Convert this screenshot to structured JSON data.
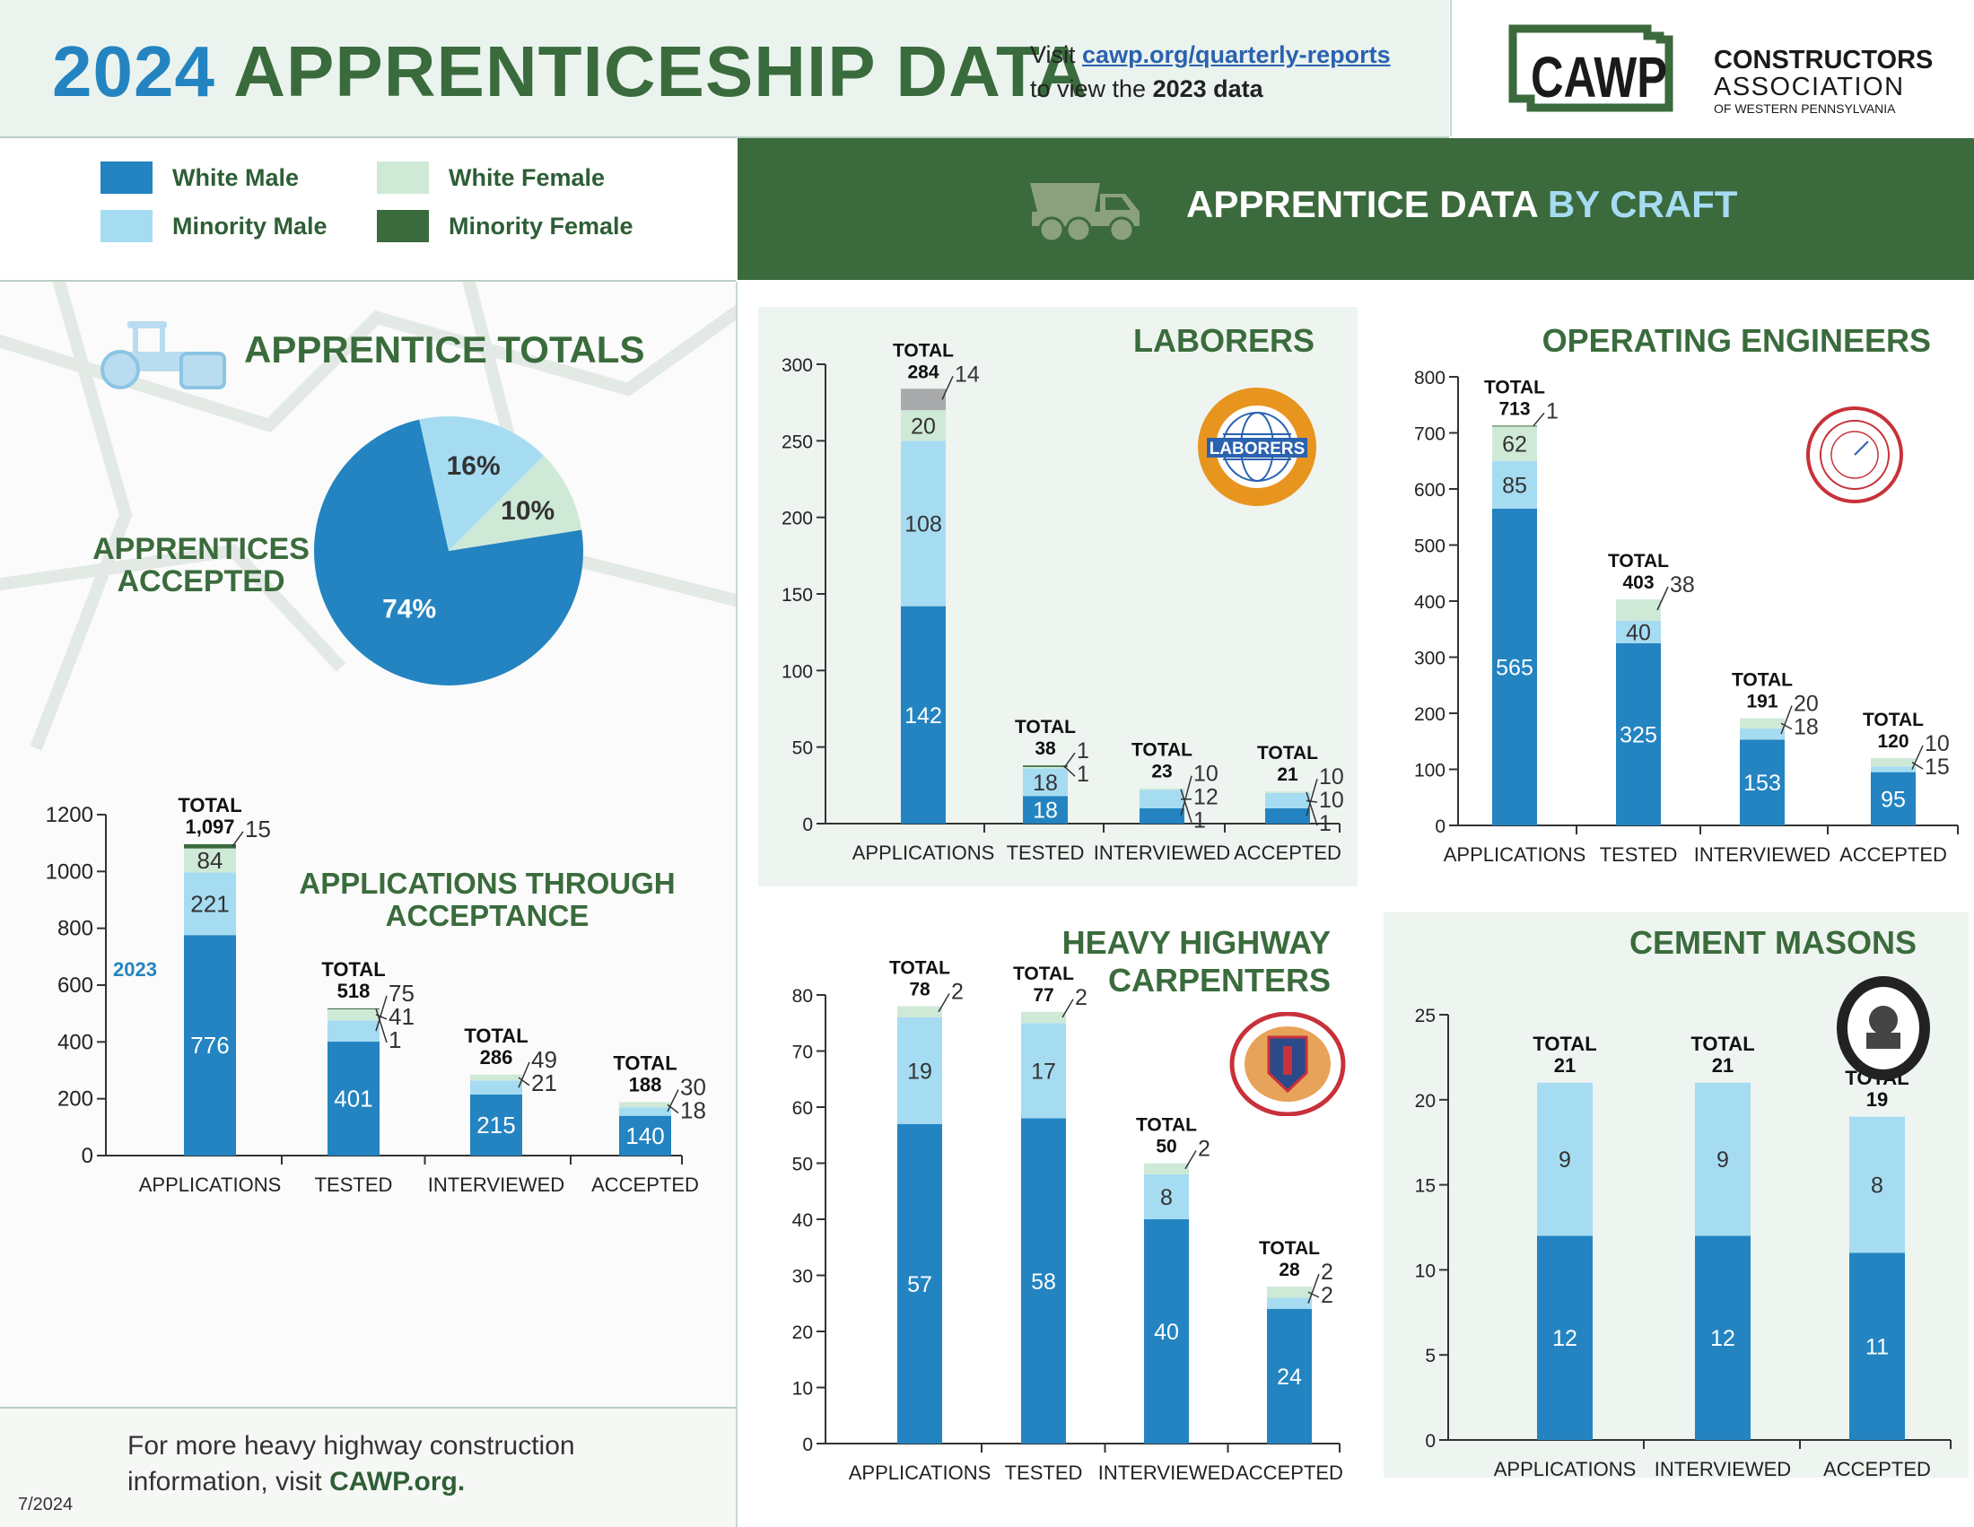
{
  "header": {
    "title_year": "2024",
    "title_rest": "APPRENTICESHIP DATA",
    "visit_pre": "Visit ",
    "visit_link": "cawp.org/quarterly-reports",
    "visit_mid": "to view the ",
    "visit_bold": "2023 data"
  },
  "brand": {
    "logo_text": "CAWP",
    "name_line1": "CONSTRUCTORS",
    "name_line2": "ASSOCIATION",
    "name_line3": "OF WESTERN PENNSYLVANIA"
  },
  "legend": [
    {
      "label": "White Male",
      "color": "#2384c1"
    },
    {
      "label": "White Female",
      "color": "#cfe9d7"
    },
    {
      "label": "Minority Male",
      "color": "#a6dcf2"
    },
    {
      "label": "Minority Female",
      "color": "#3b6a3d"
    }
  ],
  "colors": {
    "total_gray": "#a8aaac",
    "axis": "#333333",
    "brand_green": "#3a6b3c",
    "brand_blue": "#2384c1"
  },
  "craft_banner": {
    "title_main": "APPRENTICE DATA ",
    "title_highlight": "BY CRAFT",
    "icon": "dump-truck-icon"
  },
  "totals_section": {
    "title": "APPRENTICE TOTALS",
    "icon": "road-roller-icon",
    "pie_label_line1": "APPRENTICES",
    "pie_label_line2": "ACCEPTED"
  },
  "footer": {
    "line1": "For more heavy highway construction",
    "line2_pre": "information, visit ",
    "line2_link": "CAWP.org.",
    "date": "7/2024"
  },
  "chart_data": [
    {
      "id": "accepted_pie",
      "type": "pie",
      "title": "APPRENTICES ACCEPTED",
      "slices": [
        {
          "label": "74%",
          "value": 74,
          "color": "#2384c1"
        },
        {
          "label": "16%",
          "value": 16,
          "color": "#a6dcf2"
        },
        {
          "label": "10%",
          "value": 10,
          "color": "#cfe9d7"
        }
      ]
    },
    {
      "id": "totals",
      "type": "bar",
      "stacked": true,
      "title_line1": "APPLICATIONS THROUGH",
      "title_line2": "ACCEPTANCE",
      "annotation": "2023",
      "categories": [
        "APPLICATIONS",
        "TESTED",
        "INTERVIEWED",
        "ACCEPTED"
      ],
      "ylim": [
        0,
        1200
      ],
      "yticks": [
        0,
        200,
        400,
        600,
        800,
        1000,
        1200
      ],
      "total_prefix": "TOTAL",
      "totals": [
        "1,097",
        "518",
        "286",
        "188"
      ],
      "series": [
        {
          "name": "White Male",
          "values": [
            776,
            401,
            215,
            140
          ]
        },
        {
          "name": "Minority Male",
          "values": [
            221,
            75,
            49,
            30
          ]
        },
        {
          "name": "White Female",
          "values": [
            84,
            41,
            21,
            18
          ]
        },
        {
          "name": "Minority Female",
          "values": [
            15,
            1,
            0,
            0
          ]
        }
      ]
    },
    {
      "id": "laborers",
      "type": "bar",
      "stacked": true,
      "title": "LABORERS",
      "logo_text": "LABORERS",
      "categories": [
        "APPLICATIONS",
        "TESTED",
        "INTERVIEWED",
        "ACCEPTED"
      ],
      "ylim": [
        0,
        300
      ],
      "yticks": [
        0,
        50,
        100,
        150,
        200,
        250,
        300
      ],
      "total_prefix": "TOTAL",
      "totals": [
        "284",
        "38",
        "23",
        "21"
      ],
      "series": [
        {
          "name": "White Male",
          "values": [
            142,
            18,
            10,
            10
          ]
        },
        {
          "name": "Minority Male",
          "values": [
            108,
            18,
            12,
            10
          ]
        },
        {
          "name": "White Female",
          "values": [
            20,
            1,
            1,
            1
          ]
        },
        {
          "name": "Minority Female",
          "values": [
            0,
            1,
            0,
            0
          ]
        },
        {
          "name": "",
          "values": [
            14,
            0,
            0,
            0
          ]
        }
      ]
    },
    {
      "id": "operating_engineers",
      "type": "bar",
      "stacked": true,
      "title": "OPERATING ENGINEERS",
      "categories": [
        "APPLICATIONS",
        "TESTED",
        "INTERVIEWED",
        "ACCEPTED"
      ],
      "ylim": [
        0,
        800
      ],
      "yticks": [
        0,
        100,
        200,
        300,
        400,
        500,
        600,
        700,
        800
      ],
      "total_prefix": "TOTAL",
      "totals": [
        "713",
        "403",
        "191",
        "120"
      ],
      "series": [
        {
          "name": "White Male",
          "values": [
            565,
            325,
            153,
            95
          ]
        },
        {
          "name": "Minority Male",
          "values": [
            85,
            40,
            20,
            10
          ]
        },
        {
          "name": "White Female",
          "values": [
            62,
            38,
            18,
            15
          ]
        },
        {
          "name": "Minority Female",
          "values": [
            1,
            0,
            0,
            0
          ]
        }
      ]
    },
    {
      "id": "heavy_highway_carpenters",
      "type": "bar",
      "stacked": true,
      "title_line1": "HEAVY HIGHWAY",
      "title_line2": "CARPENTERS",
      "categories": [
        "APPLICATIONS",
        "TESTED",
        "INTERVIEWED",
        "ACCEPTED"
      ],
      "ylim": [
        0,
        80
      ],
      "yticks": [
        0,
        10,
        20,
        30,
        40,
        50,
        60,
        70,
        80
      ],
      "total_prefix": "TOTAL",
      "totals": [
        "78",
        "77",
        "50",
        "28"
      ],
      "series": [
        {
          "name": "White Male",
          "values": [
            57,
            58,
            40,
            24
          ]
        },
        {
          "name": "Minority Male",
          "values": [
            19,
            17,
            8,
            2
          ]
        },
        {
          "name": "White Female",
          "values": [
            2,
            2,
            2,
            2
          ]
        }
      ]
    },
    {
      "id": "cement_masons",
      "type": "bar",
      "stacked": true,
      "title": "CEMENT MASONS",
      "categories": [
        "APPLICATIONS",
        "INTERVIEWED",
        "ACCEPTED"
      ],
      "ylim": [
        0,
        25
      ],
      "yticks": [
        0,
        5,
        10,
        15,
        20,
        25
      ],
      "total_prefix": "TOTAL",
      "totals": [
        "21",
        "21",
        "19"
      ],
      "series": [
        {
          "name": "White Male",
          "values": [
            12,
            12,
            11
          ]
        },
        {
          "name": "Minority Male",
          "values": [
            9,
            9,
            8
          ]
        }
      ]
    }
  ]
}
